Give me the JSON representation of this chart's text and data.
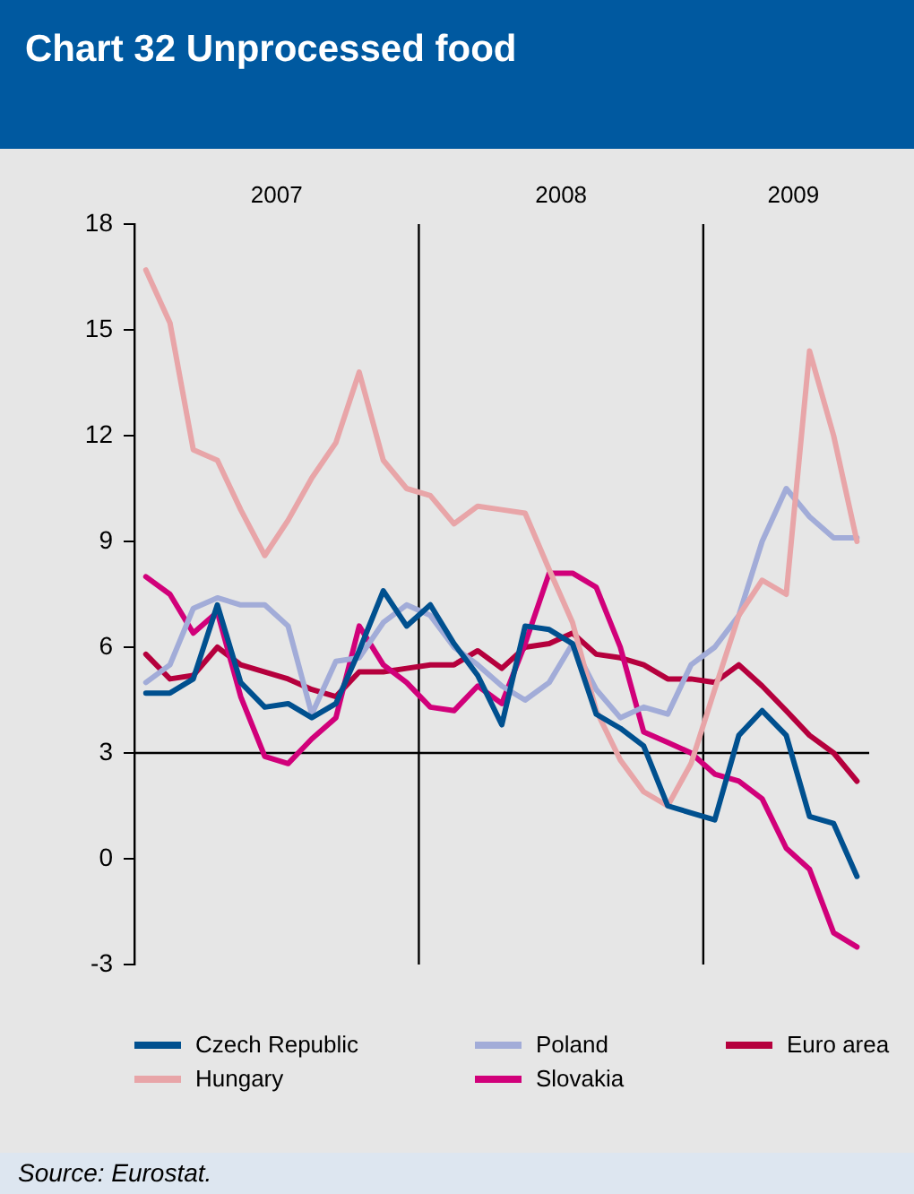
{
  "chart_data": {
    "type": "line",
    "title": "Chart 32 Unprocessed food",
    "x": [
      "2007-01-16",
      "2007-02-15",
      "2007-03-16",
      "2007-04-16",
      "2007-05-16",
      "2007-06-16",
      "2007-07-16",
      "2007-08-16",
      "2007-09-16",
      "2007-10-16",
      "2007-11-16",
      "2007-12-16",
      "2008-01-16",
      "2008-02-15",
      "2008-03-16",
      "2008-04-16",
      "2008-05-16",
      "2008-06-16",
      "2008-07-16",
      "2008-08-16",
      "2008-09-16",
      "2008-10-16",
      "2008-11-16",
      "2008-12-16",
      "2009-01-16",
      "2009-02-15",
      "2009-03-16",
      "2009-04-16",
      "2009-05-16",
      "2009-06-16",
      "2009-07-16"
    ],
    "series": [
      {
        "name": "Czech Republic",
        "color": "#00508f",
        "values": [
          4.7,
          4.7,
          5.1,
          7.2,
          5.0,
          4.3,
          4.4,
          4.0,
          4.4,
          5.9,
          7.6,
          6.6,
          7.2,
          6.1,
          5.2,
          3.8,
          6.6,
          6.5,
          6.1,
          4.1,
          3.7,
          3.2,
          1.5,
          1.3,
          1.1,
          3.5,
          4.2,
          3.5,
          1.2,
          1.0,
          -0.5
        ]
      },
      {
        "name": "Hungary",
        "color": "#e8a5a8",
        "values": [
          16.7,
          15.2,
          11.6,
          11.3,
          9.9,
          8.6,
          9.6,
          10.8,
          11.8,
          13.8,
          11.3,
          10.5,
          10.3,
          9.5,
          10.0,
          9.9,
          9.8,
          8.2,
          6.7,
          4.2,
          2.8,
          1.9,
          1.5,
          2.7,
          4.8,
          6.9,
          7.9,
          7.5,
          14.4,
          12.0,
          9.0
        ]
      },
      {
        "name": "Poland",
        "color": "#a2acd8",
        "values": [
          5.0,
          5.5,
          7.1,
          7.4,
          7.2,
          7.2,
          6.6,
          4.1,
          5.6,
          5.7,
          6.7,
          7.2,
          6.9,
          6.0,
          5.5,
          4.9,
          4.5,
          5.0,
          6.1,
          4.8,
          4.0,
          4.3,
          4.1,
          5.5,
          6.0,
          6.9,
          9.0,
          10.5,
          9.7,
          9.1,
          9.1
        ]
      },
      {
        "name": "Slovakia",
        "color": "#d1007a",
        "values": [
          8.0,
          7.5,
          6.4,
          7.0,
          4.6,
          2.9,
          2.7,
          3.4,
          4.0,
          6.6,
          5.5,
          5.0,
          4.3,
          4.2,
          4.9,
          4.4,
          6.1,
          8.1,
          8.1,
          7.7,
          6.0,
          3.6,
          3.3,
          3.0,
          2.4,
          2.2,
          1.7,
          0.3,
          -0.3,
          -2.1,
          -2.5
        ]
      },
      {
        "name": "Euro area",
        "color": "#b5003d",
        "values": [
          5.8,
          5.1,
          5.2,
          6.0,
          5.5,
          5.3,
          5.1,
          4.8,
          4.6,
          5.3,
          5.3,
          5.4,
          5.5,
          5.5,
          5.9,
          5.4,
          6.0,
          6.1,
          6.4,
          5.8,
          5.7,
          5.5,
          5.1,
          5.1,
          5.0,
          5.5,
          4.9,
          4.2,
          3.5,
          3.0,
          2.2
        ]
      }
    ],
    "xlim": [
      "2007-01-01",
      "2009-08-01"
    ],
    "xticks": [
      {
        "value": "2007-07-01",
        "label": "2007"
      },
      {
        "value": "2008-07-01",
        "label": "2008"
      },
      {
        "value": "2009-04-25",
        "label": "2009"
      }
    ],
    "ylim": [
      -3,
      18
    ],
    "yticks": [
      -3,
      0,
      3,
      6,
      9,
      12,
      15,
      18
    ],
    "ref_lines": [
      {
        "axis": "y",
        "value": 3,
        "color": "#000000"
      },
      {
        "axis": "x",
        "value": "2008-01-01",
        "color": "#000000"
      },
      {
        "axis": "x",
        "value": "2009-01-01",
        "color": "#000000"
      }
    ],
    "grid": false,
    "legend": "bottom",
    "marker": "none",
    "line_style": "solid",
    "annotations": [
      "Source: Eurostat."
    ]
  }
}
